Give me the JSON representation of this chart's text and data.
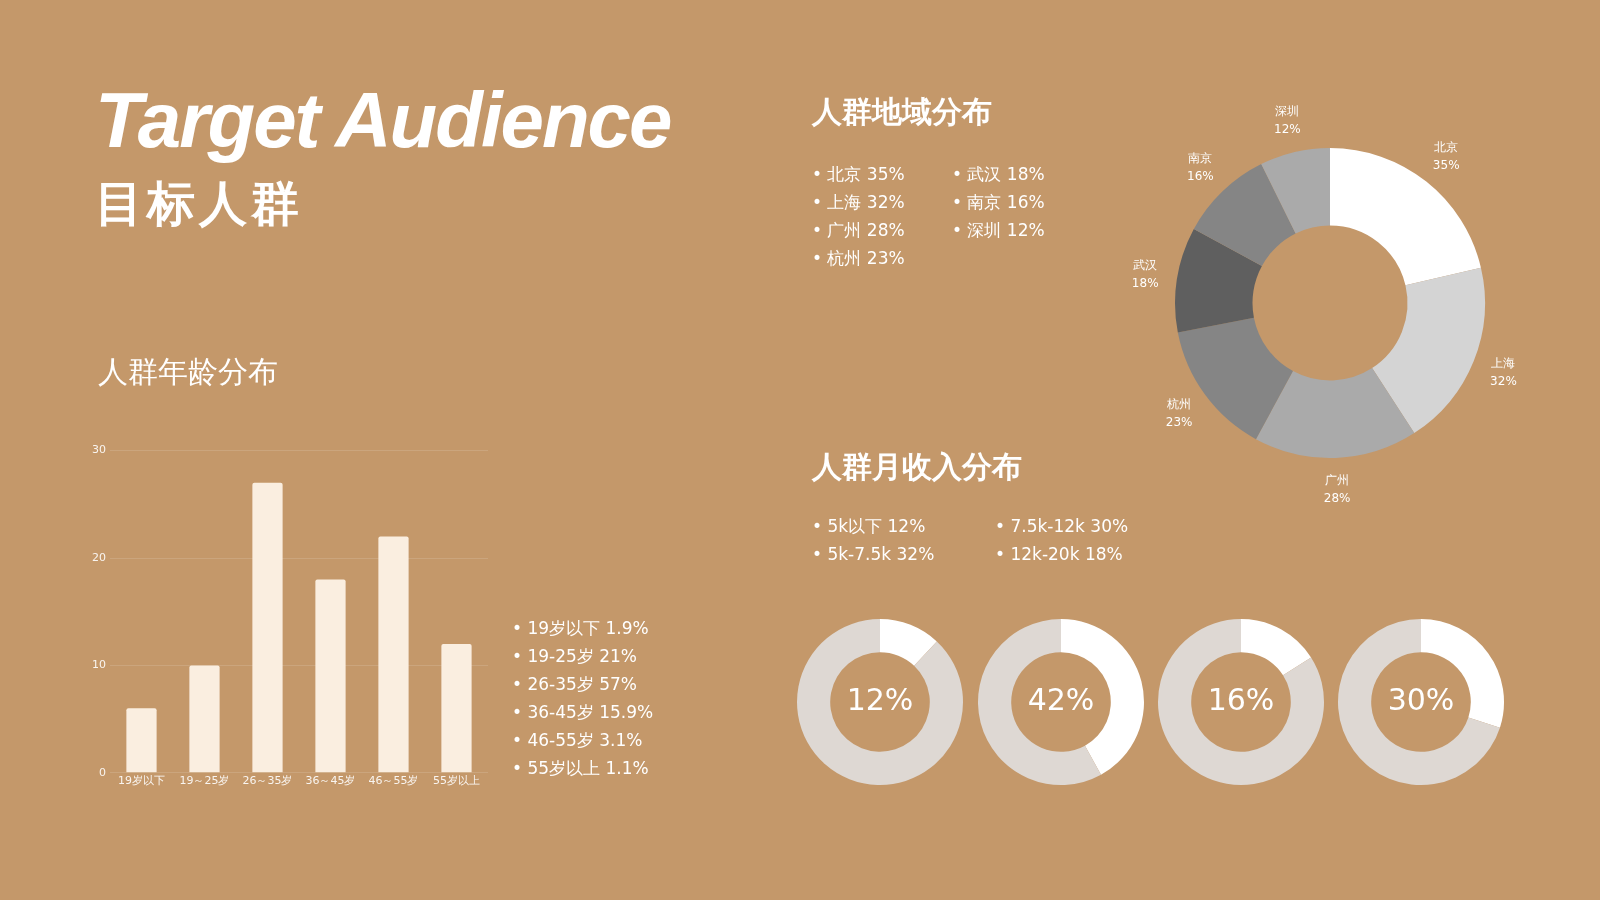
{
  "chart_data": [
    {
      "type": "other",
      "title": "Target Audience",
      "subtitle": "目标人群"
    },
    {
      "type": "donut",
      "title": "人群地域分布",
      "annotations": [
        "• 北京 35%",
        "• 上海 32%",
        "• 广州 28%",
        "• 杭州 23%",
        "• 武汉 18%",
        "• 南京 16%",
        "• 深圳 12%"
      ],
      "categories": [
        "北京",
        "上海",
        "广州",
        "杭州",
        "武汉",
        "南京",
        "深圳"
      ],
      "values": [
        35,
        32,
        28,
        23,
        18,
        16,
        12
      ],
      "value_labels": [
        "35%",
        "32%",
        "28%",
        "23%",
        "18%",
        "16%",
        "12%"
      ],
      "colors": [
        "#ffffff",
        "#d4d4d4",
        "#aaaaaa",
        "#858585",
        "#5f5f5f",
        "#858585",
        "#aaaaaa"
      ]
    },
    {
      "type": "other",
      "title": "人群月收入分布",
      "annotations": [
        "• 5k以下 12%",
        "• 5k-7.5k 32%",
        "• 7.5k-12k 30%",
        "• 12k-20k 18%"
      ]
    },
    {
      "type": "donut",
      "categories": [
        null,
        null
      ],
      "values": [
        12,
        88
      ],
      "colors": [
        "#ffffff",
        "#ded8d3"
      ],
      "annotations": [
        "12%"
      ]
    },
    {
      "type": "donut",
      "categories": [
        null,
        null
      ],
      "values": [
        42,
        58
      ],
      "colors": [
        "#ffffff",
        "#ded8d3"
      ],
      "annotations": [
        "42%"
      ]
    },
    {
      "type": "donut",
      "categories": [
        null,
        null
      ],
      "values": [
        16,
        84
      ],
      "colors": [
        "#ffffff",
        "#ded8d3"
      ],
      "annotations": [
        "16%"
      ]
    },
    {
      "type": "donut",
      "categories": [
        null,
        null
      ],
      "values": [
        30,
        70
      ],
      "colors": [
        "#ffffff",
        "#ded8d3"
      ],
      "annotations": [
        "30%"
      ]
    },
    {
      "type": "bar",
      "title": "人群年龄分布",
      "annotations": [
        "• 19岁以下 1.9%",
        "• 19-25岁 21%",
        "• 26-35岁 57%",
        "• 36-45岁 15.9%",
        "• 46-55岁 3.1%",
        "• 55岁以上 1.1%"
      ],
      "categories": [
        "19岁以下",
        "19～25岁",
        "26～35岁",
        "36～45岁",
        "46～55岁",
        "55岁以上"
      ],
      "values": [
        6,
        10,
        27,
        18,
        22,
        12
      ],
      "color": "#faeee0",
      "ylim": [
        0,
        30
      ],
      "yticks": [
        0,
        10,
        20,
        30
      ],
      "grid": "y"
    }
  ]
}
